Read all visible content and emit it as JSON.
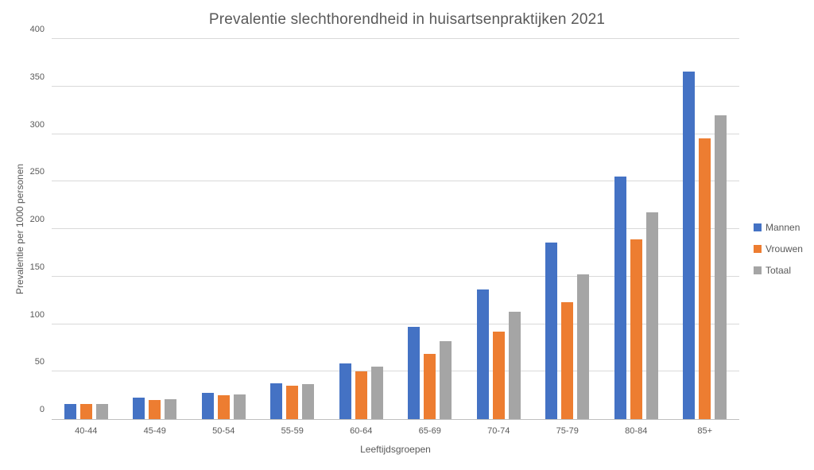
{
  "chart_data": {
    "type": "bar",
    "title": "Prevalentie slechthorendheid in huisartsenpraktijken 2021",
    "xlabel": "Leeftijdsgroepen",
    "ylabel": "Prevalentie per 1000 personen",
    "categories": [
      "40-44",
      "45-49",
      "50-54",
      "55-59",
      "60-64",
      "65-69",
      "70-74",
      "75-79",
      "80-84",
      "85+"
    ],
    "series": [
      {
        "name": "Mannen",
        "color": "#4472C4",
        "values": [
          16,
          23,
          28,
          38,
          59,
          97,
          136,
          186,
          255,
          366
        ]
      },
      {
        "name": "Vrouwen",
        "color": "#ED7D31",
        "values": [
          16,
          20,
          25,
          35,
          50,
          69,
          92,
          123,
          189,
          295
        ]
      },
      {
        "name": "Totaal",
        "color": "#A5A5A5",
        "values": [
          16,
          21,
          26,
          37,
          55,
          82,
          113,
          152,
          218,
          320
        ]
      }
    ],
    "ylim": [
      0,
      400
    ],
    "ytick_step": 50,
    "yticks": [
      0,
      50,
      100,
      150,
      200,
      250,
      300,
      350,
      400
    ],
    "grid": "horizontal",
    "legend_position": "right"
  },
  "colors": {
    "text": "#595959",
    "gridline": "#D9D9D9",
    "axis_line": "#BFBFBF",
    "background": "#FFFFFF"
  }
}
